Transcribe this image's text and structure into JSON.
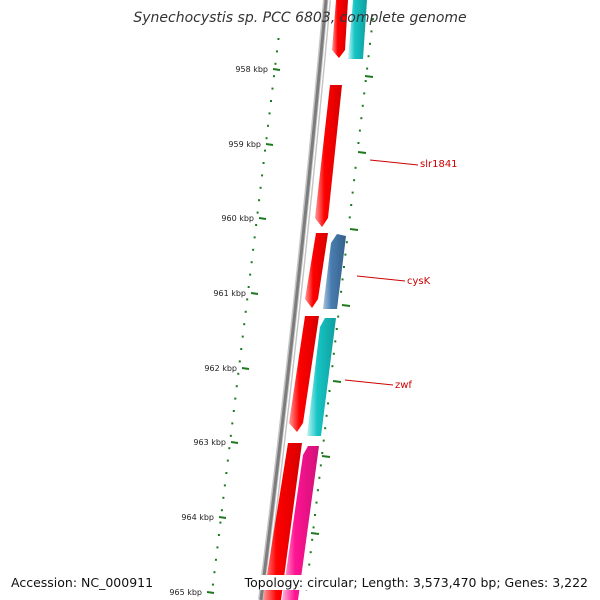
{
  "title": "Synechocystis sp. PCC 6803, complete genome",
  "footer": {
    "accession": "Accession: NC_000911",
    "summary": "Topology: circular; Length: 3,573,470 bp; Genes: 3,222"
  },
  "colors": {
    "backbone": "#8a8a8a",
    "tick": "#1f7a1f",
    "forward_gene": "#ff0000",
    "reverse_cyan": "#17c5c5",
    "reverse_blue": "#4a7eb0",
    "reverse_magenta": "#ff1493",
    "callout": "#cc0000"
  },
  "ticks": [
    {
      "label": "958 kbp"
    },
    {
      "label": "959 kbp"
    },
    {
      "label": "960 kbp"
    },
    {
      "label": "961 kbp"
    },
    {
      "label": "962 kbp"
    },
    {
      "label": "963 kbp"
    },
    {
      "label": "964 kbp"
    },
    {
      "label": "965 kbp"
    }
  ],
  "genes": [
    {
      "name": "slr1841",
      "strand": "forward",
      "color_key": "forward_gene"
    },
    {
      "name": "cysK",
      "strand": "reverse",
      "color_key": "reverse_blue"
    },
    {
      "name": "zwf",
      "strand": "reverse",
      "color_key": "reverse_cyan"
    }
  ]
}
